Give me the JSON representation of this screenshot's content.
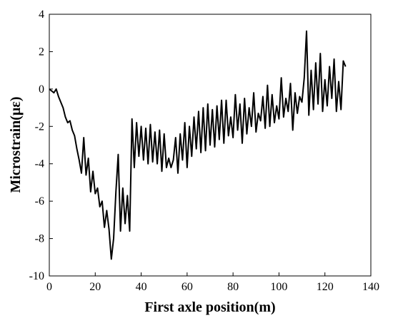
{
  "chart_data": {
    "type": "line",
    "title": "",
    "xlabel": "First axle position(m)",
    "ylabel": "Microstrain(με)",
    "xlim": [
      0,
      140
    ],
    "ylim": [
      -10,
      4
    ],
    "xticks": [
      "0",
      "20",
      "40",
      "60",
      "80",
      "100",
      "120",
      "140"
    ],
    "yticks": [
      "4",
      "2",
      "0",
      "-2",
      "-4",
      "-6",
      "-8",
      "-10"
    ],
    "grid": false,
    "line_color": "#000000",
    "series": [
      {
        "x": [
          0,
          1,
          2,
          3,
          4,
          5,
          6,
          7,
          8,
          9,
          10,
          11,
          12,
          13,
          14,
          15,
          16,
          17,
          18,
          19,
          20,
          21,
          22,
          23,
          24,
          25,
          26,
          27,
          28,
          29,
          30,
          31,
          32,
          33,
          34,
          35,
          36,
          37,
          38,
          39,
          40,
          41,
          42,
          43,
          44,
          45,
          46,
          47,
          48,
          49,
          50,
          51,
          52,
          53,
          54,
          55,
          56,
          57,
          58,
          59,
          60,
          61,
          62,
          63,
          64,
          65,
          66,
          67,
          68,
          69,
          70,
          71,
          72,
          73,
          74,
          75,
          76,
          77,
          78,
          79,
          80,
          81,
          82,
          83,
          84,
          85,
          86,
          87,
          88,
          89,
          90,
          91,
          92,
          93,
          94,
          95,
          96,
          97,
          98,
          99,
          100,
          101,
          102,
          103,
          104,
          105,
          106,
          107,
          108,
          109,
          110,
          111,
          112,
          113,
          114,
          115,
          116,
          117,
          118,
          119,
          120,
          121,
          122,
          123,
          124,
          125,
          126,
          127,
          128,
          129
        ],
        "y": [
          0.0,
          -0.1,
          -0.2,
          0.0,
          -0.4,
          -0.7,
          -1.0,
          -1.5,
          -1.8,
          -1.7,
          -2.2,
          -2.5,
          -3.2,
          -3.8,
          -4.5,
          -2.6,
          -4.6,
          -3.7,
          -5.5,
          -4.4,
          -5.6,
          -5.3,
          -6.3,
          -6.0,
          -7.4,
          -6.5,
          -7.5,
          -9.1,
          -8.0,
          -5.5,
          -3.5,
          -7.6,
          -5.3,
          -7.2,
          -5.7,
          -7.6,
          -1.6,
          -4.2,
          -1.8,
          -3.6,
          -2.0,
          -3.8,
          -2.1,
          -4.0,
          -1.9,
          -3.9,
          -2.3,
          -4.0,
          -2.2,
          -4.4,
          -2.4,
          -4.2,
          -3.7,
          -4.2,
          -3.8,
          -2.6,
          -4.5,
          -2.4,
          -3.8,
          -1.8,
          -4.2,
          -2.0,
          -3.6,
          -1.5,
          -3.2,
          -1.2,
          -3.4,
          -1.0,
          -3.3,
          -0.8,
          -3.0,
          -1.1,
          -3.1,
          -0.9,
          -2.7,
          -0.6,
          -2.9,
          -0.6,
          -2.5,
          -1.5,
          -2.6,
          -0.3,
          -2.2,
          -0.8,
          -2.9,
          -0.5,
          -2.4,
          -1.0,
          -2.0,
          -0.2,
          -2.3,
          -1.3,
          -1.7,
          -0.4,
          -2.1,
          0.2,
          -2.0,
          -0.3,
          -1.8,
          -0.9,
          -1.6,
          0.6,
          -1.5,
          -0.5,
          -1.2,
          0.3,
          -2.2,
          -0.2,
          -1.3,
          -0.4,
          -0.7,
          0.6,
          3.1,
          -1.4,
          1.0,
          -1.1,
          1.4,
          -0.8,
          1.9,
          -1.2,
          0.5,
          -0.9,
          1.2,
          -0.5,
          1.6,
          -1.2,
          0.4,
          -1.1,
          1.5,
          1.2
        ]
      }
    ]
  }
}
